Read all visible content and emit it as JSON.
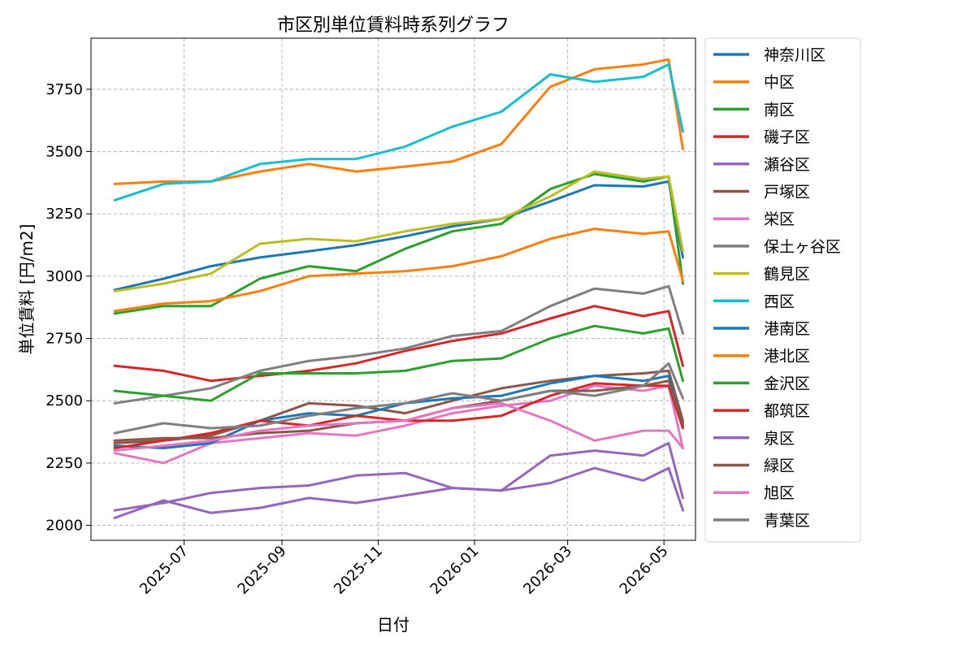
{
  "chart_data": {
    "type": "line",
    "title": "市区別単位賃料時系列グラフ",
    "xlabel": "日付",
    "ylabel": "単位賃料 [円/m2]",
    "ylim": [
      1940,
      3955
    ],
    "xlim": [
      "2025-05-03",
      "2026-05-21"
    ],
    "yticks": [
      2000,
      2250,
      2500,
      2750,
      3000,
      3250,
      3500,
      3750
    ],
    "xticks": [
      "2025-07",
      "2025-09",
      "2025-11",
      "2026-01",
      "2026-03",
      "2026-05"
    ],
    "grid": true,
    "legend_position": "outside-right",
    "keyframe_dates": [
      "2025-05-18",
      "2025-06-18",
      "2025-07-18",
      "2025-08-18",
      "2025-09-18",
      "2025-10-18",
      "2025-11-18",
      "2025-12-18",
      "2026-01-18",
      "2026-02-18",
      "2026-03-18",
      "2026-04-18",
      "2026-05-04",
      "2026-05-13"
    ],
    "series": [
      {
        "name": "神奈川区",
        "color": "#1f77b4",
        "values": [
          2945,
          2990,
          3040,
          3075,
          3100,
          3125,
          3160,
          3200,
          3230,
          3300,
          3365,
          3360,
          3380,
          3075
        ]
      },
      {
        "name": "中区",
        "color": "#ff7f0e",
        "values": [
          3370,
          3380,
          3380,
          3420,
          3450,
          3420,
          3440,
          3460,
          3530,
          3760,
          3830,
          3850,
          3870,
          3510
        ]
      },
      {
        "name": "南区",
        "color": "#2ca02c",
        "values": [
          2850,
          2880,
          2880,
          2990,
          3040,
          3020,
          3110,
          3180,
          3210,
          3350,
          3410,
          3380,
          3400,
          2970
        ]
      },
      {
        "name": "磯子区",
        "color": "#d62728",
        "values": [
          2640,
          2620,
          2580,
          2600,
          2620,
          2650,
          2700,
          2740,
          2770,
          2830,
          2880,
          2840,
          2860,
          2640
        ]
      },
      {
        "name": "瀬谷区",
        "color": "#9467bd",
        "values": [
          2060,
          2090,
          2130,
          2150,
          2160,
          2200,
          2210,
          2150,
          2140,
          2170,
          2230,
          2180,
          2230,
          2060
        ]
      },
      {
        "name": "戸塚区",
        "color": "#8c564b",
        "values": [
          2330,
          2340,
          2360,
          2420,
          2490,
          2480,
          2450,
          2500,
          2550,
          2580,
          2600,
          2610,
          2620,
          2420
        ]
      },
      {
        "name": "栄区",
        "color": "#e377c2",
        "values": [
          2290,
          2250,
          2330,
          2350,
          2370,
          2360,
          2400,
          2450,
          2480,
          2500,
          2560,
          2540,
          2560,
          2310
        ]
      },
      {
        "name": "保土ヶ谷区",
        "color": "#7f7f7f",
        "values": [
          2490,
          2520,
          2550,
          2620,
          2660,
          2680,
          2710,
          2760,
          2780,
          2880,
          2950,
          2930,
          2960,
          2770
        ]
      },
      {
        "name": "鶴見区",
        "color": "#bcbd22",
        "values": [
          2940,
          2970,
          3010,
          3130,
          3150,
          3140,
          3180,
          3210,
          3230,
          3320,
          3420,
          3390,
          3400,
          3100
        ]
      },
      {
        "name": "西区",
        "color": "#17becf",
        "values": [
          3305,
          3370,
          3380,
          3450,
          3470,
          3470,
          3520,
          3600,
          3660,
          3810,
          3780,
          3800,
          3850,
          3580
        ]
      },
      {
        "name": "港南区",
        "color": "#1f77b4",
        "values": [
          2320,
          2310,
          2330,
          2420,
          2450,
          2440,
          2490,
          2510,
          2520,
          2570,
          2600,
          2580,
          2600,
          2400
        ]
      },
      {
        "name": "港北区",
        "color": "#ff7f0e",
        "values": [
          2860,
          2890,
          2900,
          2940,
          3000,
          3010,
          3020,
          3040,
          3080,
          3150,
          3190,
          3170,
          3180,
          2980
        ]
      },
      {
        "name": "金沢区",
        "color": "#2ca02c",
        "values": [
          2540,
          2520,
          2500,
          2610,
          2610,
          2610,
          2620,
          2660,
          2670,
          2750,
          2800,
          2770,
          2790,
          2580
        ]
      },
      {
        "name": "都筑区",
        "color": "#d62728",
        "values": [
          2310,
          2340,
          2370,
          2420,
          2400,
          2440,
          2420,
          2420,
          2440,
          2520,
          2570,
          2560,
          2560,
          2390
        ]
      },
      {
        "name": "泉区",
        "color": "#9467bd",
        "values": [
          2030,
          2100,
          2050,
          2070,
          2110,
          2090,
          2120,
          2150,
          2140,
          2280,
          2300,
          2280,
          2330,
          2110
        ]
      },
      {
        "name": "緑区",
        "color": "#8c564b",
        "values": [
          2340,
          2350,
          2350,
          2370,
          2380,
          2410,
          2420,
          2470,
          2500,
          2540,
          2540,
          2560,
          2580,
          2410
        ]
      },
      {
        "name": "旭区",
        "color": "#e377c2",
        "values": [
          2300,
          2320,
          2340,
          2380,
          2400,
          2410,
          2420,
          2470,
          2490,
          2420,
          2340,
          2380,
          2380,
          2310
        ]
      },
      {
        "name": "青葉区",
        "color": "#7f7f7f",
        "values": [
          2370,
          2410,
          2390,
          2400,
          2440,
          2470,
          2490,
          2530,
          2500,
          2540,
          2520,
          2560,
          2650,
          2510
        ]
      }
    ]
  }
}
